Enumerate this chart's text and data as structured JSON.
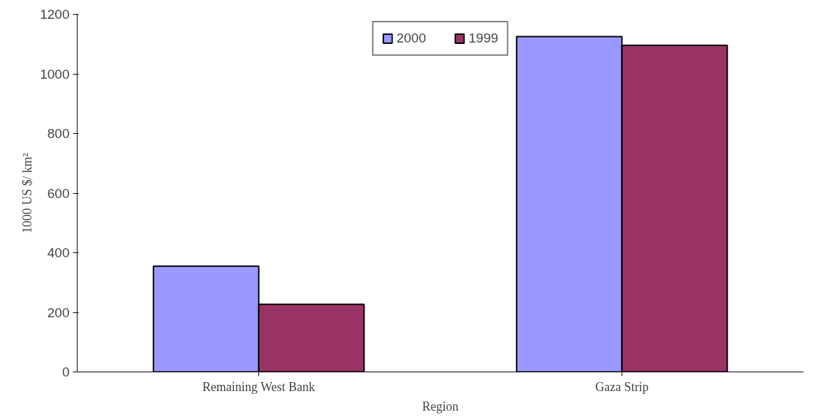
{
  "chart_data": {
    "type": "bar",
    "xlabel": "Region",
    "ylabel": "1000 US $/ km²",
    "categories": [
      "Remaining West Bank",
      "Gaza Strip"
    ],
    "series": [
      {
        "name": "2000",
        "color": "#9999ff",
        "values": [
          355,
          1125
        ]
      },
      {
        "name": "1999",
        "color": "#993366",
        "values": [
          227,
          1096
        ]
      }
    ],
    "ylim": [
      0,
      1200
    ],
    "yticks": [
      0,
      200,
      400,
      600,
      800,
      1000,
      1200
    ],
    "grid": false,
    "legend": "top"
  }
}
